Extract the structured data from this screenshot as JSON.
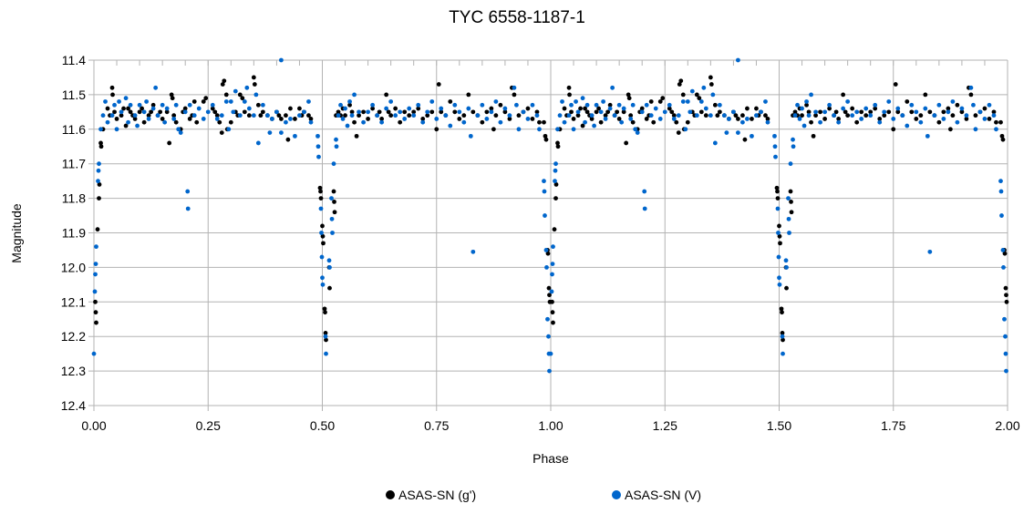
{
  "chart_data": {
    "type": "scatter",
    "title": "TYC 6558-1187-1",
    "xlabel": "Phase",
    "ylabel": "Magnitude",
    "xlim": [
      0,
      2
    ],
    "ylim": [
      11.4,
      12.4
    ],
    "y_inverted": true,
    "grid": true,
    "legend_position": "bottom",
    "x_ticks": [
      "0.00",
      "0.25",
      "0.50",
      "0.75",
      "1.00",
      "1.25",
      "1.50",
      "1.75",
      "2.00"
    ],
    "y_ticks": [
      "11.4",
      "11.5",
      "11.6",
      "11.7",
      "11.8",
      "11.9",
      "12.0",
      "12.1",
      "12.2",
      "12.3",
      "12.4"
    ],
    "phase_repeated_twice": true,
    "series": [
      {
        "name": "ASAS-SN (g')",
        "color": "#000000",
        "points": [
          [
            0.003,
            12.1
          ],
          [
            0.004,
            12.13
          ],
          [
            0.005,
            12.16
          ],
          [
            0.008,
            11.89
          ],
          [
            0.011,
            11.8
          ],
          [
            0.012,
            11.76
          ],
          [
            0.015,
            11.64
          ],
          [
            0.016,
            11.65
          ],
          [
            0.02,
            11.6
          ],
          [
            0.985,
            11.58
          ],
          [
            0.988,
            11.62
          ],
          [
            0.99,
            11.63
          ],
          [
            0.993,
            11.95
          ],
          [
            0.994,
            11.96
          ],
          [
            0.996,
            12.06
          ],
          [
            0.997,
            12.08
          ],
          [
            0.998,
            12.1
          ],
          [
            0.495,
            11.77
          ],
          [
            0.496,
            11.78
          ],
          [
            0.497,
            11.8
          ],
          [
            0.5,
            11.88
          ],
          [
            0.501,
            11.91
          ],
          [
            0.502,
            11.93
          ],
          [
            0.505,
            12.12
          ],
          [
            0.506,
            12.13
          ],
          [
            0.507,
            12.19
          ],
          [
            0.508,
            12.21
          ],
          [
            0.515,
            12.0
          ],
          [
            0.516,
            12.06
          ],
          [
            0.525,
            11.78
          ],
          [
            0.526,
            11.81
          ],
          [
            0.527,
            11.84
          ],
          [
            0.53,
            11.56
          ],
          [
            0.03,
            11.54
          ],
          [
            0.035,
            11.56
          ],
          [
            0.04,
            11.48
          ],
          [
            0.041,
            11.5
          ],
          [
            0.045,
            11.55
          ],
          [
            0.05,
            11.57
          ],
          [
            0.06,
            11.56
          ],
          [
            0.065,
            11.54
          ],
          [
            0.07,
            11.59
          ],
          [
            0.075,
            11.54
          ],
          [
            0.08,
            11.55
          ],
          [
            0.085,
            11.56
          ],
          [
            0.09,
            11.57
          ],
          [
            0.1,
            11.55
          ],
          [
            0.105,
            11.54
          ],
          [
            0.11,
            11.58
          ],
          [
            0.12,
            11.56
          ],
          [
            0.125,
            11.55
          ],
          [
            0.13,
            11.53
          ],
          [
            0.14,
            11.56
          ],
          [
            0.145,
            11.55
          ],
          [
            0.15,
            11.57
          ],
          [
            0.16,
            11.55
          ],
          [
            0.165,
            11.64
          ],
          [
            0.17,
            11.5
          ],
          [
            0.172,
            11.51
          ],
          [
            0.175,
            11.56
          ],
          [
            0.18,
            11.58
          ],
          [
            0.19,
            11.6
          ],
          [
            0.195,
            11.55
          ],
          [
            0.2,
            11.54
          ],
          [
            0.21,
            11.57
          ],
          [
            0.215,
            11.56
          ],
          [
            0.22,
            11.52
          ],
          [
            0.225,
            11.58
          ],
          [
            0.24,
            11.52
          ],
          [
            0.245,
            11.51
          ],
          [
            0.26,
            11.54
          ],
          [
            0.265,
            11.55
          ],
          [
            0.27,
            11.56
          ],
          [
            0.275,
            11.58
          ],
          [
            0.28,
            11.61
          ],
          [
            0.282,
            11.47
          ],
          [
            0.285,
            11.46
          ],
          [
            0.29,
            11.5
          ],
          [
            0.292,
            11.6
          ],
          [
            0.3,
            11.58
          ],
          [
            0.31,
            11.55
          ],
          [
            0.315,
            11.56
          ],
          [
            0.32,
            11.5
          ],
          [
            0.325,
            11.51
          ],
          [
            0.33,
            11.55
          ],
          [
            0.34,
            11.56
          ],
          [
            0.35,
            11.45
          ],
          [
            0.352,
            11.47
          ],
          [
            0.36,
            11.53
          ],
          [
            0.365,
            11.56
          ],
          [
            0.37,
            11.55
          ],
          [
            0.38,
            11.56
          ],
          [
            0.39,
            11.57
          ],
          [
            0.4,
            11.55
          ],
          [
            0.405,
            11.56
          ],
          [
            0.41,
            11.57
          ],
          [
            0.42,
            11.56
          ],
          [
            0.425,
            11.63
          ],
          [
            0.43,
            11.54
          ],
          [
            0.44,
            11.57
          ],
          [
            0.45,
            11.54
          ],
          [
            0.455,
            11.56
          ],
          [
            0.46,
            11.55
          ],
          [
            0.47,
            11.56
          ],
          [
            0.475,
            11.57
          ],
          [
            0.535,
            11.55
          ],
          [
            0.54,
            11.56
          ],
          [
            0.545,
            11.54
          ],
          [
            0.55,
            11.56
          ],
          [
            0.56,
            11.53
          ],
          [
            0.565,
            11.55
          ],
          [
            0.57,
            11.58
          ],
          [
            0.575,
            11.62
          ],
          [
            0.58,
            11.56
          ],
          [
            0.59,
            11.55
          ],
          [
            0.6,
            11.57
          ],
          [
            0.61,
            11.54
          ],
          [
            0.62,
            11.56
          ],
          [
            0.625,
            11.55
          ],
          [
            0.63,
            11.57
          ],
          [
            0.64,
            11.5
          ],
          [
            0.645,
            11.55
          ],
          [
            0.65,
            11.56
          ],
          [
            0.66,
            11.54
          ],
          [
            0.67,
            11.58
          ],
          [
            0.68,
            11.55
          ],
          [
            0.69,
            11.56
          ],
          [
            0.7,
            11.55
          ],
          [
            0.71,
            11.54
          ],
          [
            0.72,
            11.57
          ],
          [
            0.73,
            11.56
          ],
          [
            0.74,
            11.55
          ],
          [
            0.75,
            11.6
          ],
          [
            0.755,
            11.47
          ],
          [
            0.76,
            11.55
          ],
          [
            0.77,
            11.56
          ],
          [
            0.78,
            11.52
          ],
          [
            0.79,
            11.55
          ],
          [
            0.8,
            11.57
          ],
          [
            0.81,
            11.56
          ],
          [
            0.82,
            11.5
          ],
          [
            0.83,
            11.55
          ],
          [
            0.84,
            11.56
          ],
          [
            0.85,
            11.58
          ],
          [
            0.86,
            11.55
          ],
          [
            0.87,
            11.54
          ],
          [
            0.875,
            11.6
          ],
          [
            0.88,
            11.56
          ],
          [
            0.89,
            11.53
          ],
          [
            0.9,
            11.55
          ],
          [
            0.91,
            11.57
          ],
          [
            0.915,
            11.48
          ],
          [
            0.92,
            11.5
          ],
          [
            0.93,
            11.56
          ],
          [
            0.94,
            11.55
          ],
          [
            0.95,
            11.54
          ],
          [
            0.96,
            11.57
          ],
          [
            0.97,
            11.55
          ],
          [
            0.975,
            11.58
          ]
        ]
      },
      {
        "name": "ASAS-SN (V)",
        "color": "#0066cc",
        "points": [
          [
            0.0,
            12.25
          ],
          [
            0.002,
            12.07
          ],
          [
            0.003,
            12.02
          ],
          [
            0.004,
            11.99
          ],
          [
            0.005,
            11.94
          ],
          [
            0.009,
            11.75
          ],
          [
            0.01,
            11.72
          ],
          [
            0.011,
            11.7
          ],
          [
            0.015,
            11.6
          ],
          [
            0.985,
            11.75
          ],
          [
            0.986,
            11.78
          ],
          [
            0.987,
            11.85
          ],
          [
            0.99,
            11.95
          ],
          [
            0.991,
            12.0
          ],
          [
            0.993,
            12.15
          ],
          [
            0.995,
            12.2
          ],
          [
            0.996,
            12.25
          ],
          [
            0.997,
            12.3
          ],
          [
            0.49,
            11.62
          ],
          [
            0.491,
            11.65
          ],
          [
            0.492,
            11.68
          ],
          [
            0.497,
            11.83
          ],
          [
            0.498,
            11.9
          ],
          [
            0.499,
            11.97
          ],
          [
            0.5,
            12.03
          ],
          [
            0.501,
            12.05
          ],
          [
            0.507,
            12.2
          ],
          [
            0.508,
            12.25
          ],
          [
            0.515,
            11.98
          ],
          [
            0.516,
            12.0
          ],
          [
            0.52,
            11.8
          ],
          [
            0.521,
            11.86
          ],
          [
            0.522,
            11.9
          ],
          [
            0.525,
            11.7
          ],
          [
            0.53,
            11.63
          ],
          [
            0.531,
            11.65
          ],
          [
            0.205,
            11.78
          ],
          [
            0.206,
            11.83
          ],
          [
            0.41,
            11.4
          ],
          [
            0.83,
            11.955
          ],
          [
            0.02,
            11.56
          ],
          [
            0.025,
            11.52
          ],
          [
            0.03,
            11.58
          ],
          [
            0.04,
            11.56
          ],
          [
            0.045,
            11.53
          ],
          [
            0.05,
            11.6
          ],
          [
            0.055,
            11.52
          ],
          [
            0.06,
            11.55
          ],
          [
            0.07,
            11.51
          ],
          [
            0.075,
            11.58
          ],
          [
            0.08,
            11.53
          ],
          [
            0.09,
            11.56
          ],
          [
            0.095,
            11.59
          ],
          [
            0.1,
            11.53
          ],
          [
            0.11,
            11.55
          ],
          [
            0.115,
            11.52
          ],
          [
            0.12,
            11.57
          ],
          [
            0.13,
            11.54
          ],
          [
            0.135,
            11.48
          ],
          [
            0.14,
            11.56
          ],
          [
            0.15,
            11.53
          ],
          [
            0.155,
            11.58
          ],
          [
            0.16,
            11.54
          ],
          [
            0.175,
            11.57
          ],
          [
            0.18,
            11.53
          ],
          [
            0.185,
            11.6
          ],
          [
            0.19,
            11.61
          ],
          [
            0.2,
            11.55
          ],
          [
            0.21,
            11.53
          ],
          [
            0.22,
            11.56
          ],
          [
            0.23,
            11.54
          ],
          [
            0.24,
            11.57
          ],
          [
            0.25,
            11.55
          ],
          [
            0.26,
            11.53
          ],
          [
            0.27,
            11.57
          ],
          [
            0.28,
            11.56
          ],
          [
            0.29,
            11.52
          ],
          [
            0.295,
            11.6
          ],
          [
            0.3,
            11.52
          ],
          [
            0.305,
            11.55
          ],
          [
            0.31,
            11.49
          ],
          [
            0.32,
            11.56
          ],
          [
            0.33,
            11.52
          ],
          [
            0.335,
            11.48
          ],
          [
            0.34,
            11.54
          ],
          [
            0.35,
            11.56
          ],
          [
            0.355,
            11.5
          ],
          [
            0.36,
            11.64
          ],
          [
            0.37,
            11.53
          ],
          [
            0.38,
            11.56
          ],
          [
            0.385,
            11.61
          ],
          [
            0.39,
            11.57
          ],
          [
            0.4,
            11.55
          ],
          [
            0.41,
            11.61
          ],
          [
            0.42,
            11.58
          ],
          [
            0.43,
            11.57
          ],
          [
            0.44,
            11.62
          ],
          [
            0.45,
            11.56
          ],
          [
            0.46,
            11.55
          ],
          [
            0.47,
            11.52
          ],
          [
            0.475,
            11.58
          ],
          [
            0.535,
            11.56
          ],
          [
            0.54,
            11.53
          ],
          [
            0.545,
            11.57
          ],
          [
            0.55,
            11.54
          ],
          [
            0.555,
            11.59
          ],
          [
            0.56,
            11.52
          ],
          [
            0.565,
            11.56
          ],
          [
            0.57,
            11.5
          ],
          [
            0.58,
            11.55
          ],
          [
            0.59,
            11.58
          ],
          [
            0.6,
            11.55
          ],
          [
            0.61,
            11.53
          ],
          [
            0.62,
            11.56
          ],
          [
            0.63,
            11.58
          ],
          [
            0.64,
            11.54
          ],
          [
            0.65,
            11.52
          ],
          [
            0.66,
            11.56
          ],
          [
            0.67,
            11.55
          ],
          [
            0.68,
            11.57
          ],
          [
            0.69,
            11.54
          ],
          [
            0.7,
            11.56
          ],
          [
            0.71,
            11.53
          ],
          [
            0.72,
            11.58
          ],
          [
            0.73,
            11.55
          ],
          [
            0.74,
            11.52
          ],
          [
            0.75,
            11.57
          ],
          [
            0.76,
            11.54
          ],
          [
            0.77,
            11.56
          ],
          [
            0.78,
            11.59
          ],
          [
            0.79,
            11.53
          ],
          [
            0.8,
            11.55
          ],
          [
            0.81,
            11.58
          ],
          [
            0.82,
            11.54
          ],
          [
            0.825,
            11.62
          ],
          [
            0.84,
            11.56
          ],
          [
            0.85,
            11.53
          ],
          [
            0.86,
            11.57
          ],
          [
            0.87,
            11.55
          ],
          [
            0.88,
            11.52
          ],
          [
            0.89,
            11.58
          ],
          [
            0.9,
            11.54
          ],
          [
            0.91,
            11.56
          ],
          [
            0.92,
            11.48
          ],
          [
            0.925,
            11.53
          ],
          [
            0.93,
            11.6
          ],
          [
            0.94,
            11.55
          ],
          [
            0.95,
            11.57
          ],
          [
            0.96,
            11.53
          ],
          [
            0.97,
            11.56
          ],
          [
            0.975,
            11.6
          ]
        ]
      }
    ]
  }
}
